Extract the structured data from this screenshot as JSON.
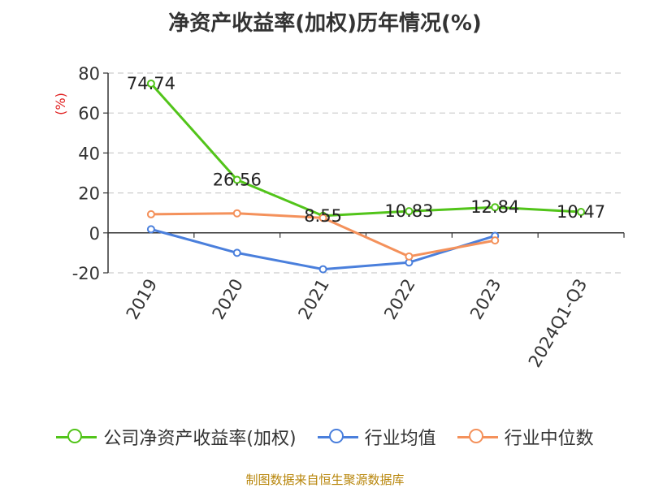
{
  "chart_data": {
    "type": "line",
    "title": "净资产收益率(加权)历年情况(%)",
    "ylabel": "(%)",
    "categories": [
      "2019",
      "2020",
      "2021",
      "2022",
      "2023",
      "2024Q1-Q3"
    ],
    "ylim": [
      -20,
      80
    ],
    "yticks": [
      -20,
      0,
      20,
      40,
      60,
      80
    ],
    "grid": true,
    "legend_position": "bottom",
    "series": [
      {
        "name": "公司净资产收益率(加权)",
        "color": "#52c41a",
        "values": [
          74.74,
          26.56,
          8.55,
          10.83,
          12.84,
          10.47
        ],
        "labels": [
          "74.74",
          "26.56",
          "8.55",
          "10.83",
          "12.84",
          "10.47"
        ]
      },
      {
        "name": "行业均值",
        "color": "#4a7fdc",
        "values": [
          1.8,
          -10.0,
          -18.2,
          -14.8,
          -1.5,
          null
        ]
      },
      {
        "name": "行业中位数",
        "color": "#f4915b",
        "values": [
          9.3,
          9.8,
          7.5,
          -11.8,
          -3.8,
          null
        ]
      }
    ]
  },
  "source": "制图数据来自恒生聚源数据库"
}
